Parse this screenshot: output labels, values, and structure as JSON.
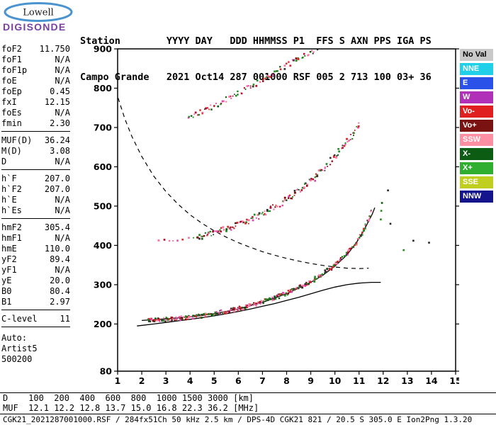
{
  "logo": {
    "line1": "Lowell",
    "line2": "DIGISONDE"
  },
  "header": {
    "line1": "Station        YYYY DAY   DDD HHMMSS P1  FFS S AXN PPS IGA PS",
    "line2": "Campo Grande   2021 Oct14 287 001000 RSF 005 2 713 100 03+ 36"
  },
  "params": {
    "groups": [
      {
        "rows": [
          [
            "foF2",
            "11.750"
          ],
          [
            "foF1",
            "N/A"
          ],
          [
            "foF1p",
            "N/A"
          ],
          [
            "foE",
            "N/A"
          ],
          [
            "foEp",
            "0.45"
          ],
          [
            "fxI",
            "12.15"
          ],
          [
            "foEs",
            "N/A"
          ],
          [
            "fmin",
            "2.30"
          ]
        ]
      },
      {
        "rows": [
          [
            "MUF(D)",
            "36.24"
          ],
          [
            "M(D)",
            "3.08"
          ],
          [
            "D",
            "N/A"
          ]
        ]
      },
      {
        "rows": [
          [
            "h`F",
            "207.0"
          ],
          [
            "h`F2",
            "207.0"
          ],
          [
            "h`E",
            "N/A"
          ],
          [
            "h`Es",
            "N/A"
          ]
        ]
      },
      {
        "rows": [
          [
            "hmF2",
            "305.4"
          ],
          [
            "hmF1",
            "N/A"
          ],
          [
            "hmE",
            "110.0"
          ],
          [
            "yF2",
            "89.4"
          ],
          [
            "yF1",
            "N/A"
          ],
          [
            "yE",
            "20.0"
          ],
          [
            "B0",
            "80.4"
          ],
          [
            "B1",
            "2.97"
          ]
        ]
      },
      {
        "rows": [
          [
            "C-level",
            "11"
          ]
        ]
      }
    ],
    "auto_lines": [
      "Auto:",
      "Artist5",
      "500200"
    ]
  },
  "legend": {
    "items": [
      {
        "label": "No Val",
        "bg": "#c9c9c9",
        "fg": "#000000"
      },
      {
        "label": "NNE",
        "bg": "#1fd0e8",
        "fg": "#ffffff"
      },
      {
        "label": "E",
        "bg": "#2a52e8",
        "fg": "#ffffff"
      },
      {
        "label": "W",
        "bg": "#b030b8",
        "fg": "#ffffff"
      },
      {
        "label": "Vo-",
        "bg": "#e02020",
        "fg": "#ffffff"
      },
      {
        "label": "Vo+",
        "bg": "#7a1212",
        "fg": "#ffffff"
      },
      {
        "label": "SSW",
        "bg": "#ff8fa3",
        "fg": "#ffffff"
      },
      {
        "label": "X-",
        "bg": "#0c5c14",
        "fg": "#ffffff"
      },
      {
        "label": "X+",
        "bg": "#2fae2f",
        "fg": "#ffffff"
      },
      {
        "label": "SSE",
        "bg": "#bfce1f",
        "fg": "#ffffff"
      },
      {
        "label": "NNW",
        "bg": "#14148c",
        "fg": "#ffffff"
      }
    ]
  },
  "chart_data": {
    "type": "scatter",
    "title": "",
    "x_unit": "MHz",
    "y_unit": "km",
    "xlim": [
      1,
      15
    ],
    "ylim": [
      80,
      900
    ],
    "x_ticks": [
      1,
      2,
      3,
      4,
      5,
      6,
      7,
      8,
      9,
      10,
      11,
      12,
      13,
      14,
      15
    ],
    "y_ticks": [
      80,
      200,
      300,
      400,
      500,
      600,
      700,
      800,
      900
    ],
    "grid": false,
    "legend_position": "right",
    "dot_colors": [
      "#d42a2a",
      "#d42a2a",
      "#b01030",
      "#ff6f9f",
      "#ff6f9f",
      "#e040b0",
      "#8b0000",
      "#1f8a1f",
      "#1f8a1f",
      "#0c5a0c",
      "#303030"
    ],
    "series": [
      {
        "name": "F2 trace 1st hop",
        "style": "scatter-trace",
        "step": 0.055,
        "per": 2,
        "jitter_h": 5,
        "points": [
          [
            2.25,
            210
          ],
          [
            2.6,
            210
          ],
          [
            3.0,
            212
          ],
          [
            3.5,
            214
          ],
          [
            4.0,
            217
          ],
          [
            4.5,
            221
          ],
          [
            5.0,
            226
          ],
          [
            5.5,
            232
          ],
          [
            6.0,
            239
          ],
          [
            6.5,
            247
          ],
          [
            7.0,
            256
          ],
          [
            7.5,
            266
          ],
          [
            8.0,
            278
          ],
          [
            8.5,
            292
          ],
          [
            9.0,
            308
          ],
          [
            9.5,
            327
          ],
          [
            10.0,
            350
          ],
          [
            10.4,
            372
          ],
          [
            10.8,
            400
          ],
          [
            11.1,
            428
          ],
          [
            11.3,
            452
          ],
          [
            11.45,
            475
          ],
          [
            11.55,
            497
          ]
        ]
      },
      {
        "name": "F2 trace 2nd hop onset",
        "style": "scatter-trace",
        "step": 0.2,
        "per": 1,
        "jitter_h": 5,
        "points": [
          [
            2.7,
            411
          ],
          [
            3.3,
            414
          ],
          [
            3.9,
            418
          ],
          [
            4.3,
            421
          ]
        ]
      },
      {
        "name": "F2 trace 2nd hop",
        "style": "scatter-trace",
        "step": 0.08,
        "per": 2,
        "jitter_h": 7,
        "points": [
          [
            4.3,
            421
          ],
          [
            4.8,
            429
          ],
          [
            5.3,
            438
          ],
          [
            5.8,
            448
          ],
          [
            6.3,
            460
          ],
          [
            6.8,
            474
          ],
          [
            7.3,
            490
          ],
          [
            7.8,
            508
          ],
          [
            8.3,
            529
          ],
          [
            8.8,
            553
          ],
          [
            9.3,
            580
          ],
          [
            9.7,
            606
          ],
          [
            10.1,
            634
          ],
          [
            10.45,
            660
          ],
          [
            10.75,
            684
          ],
          [
            11.0,
            706
          ],
          [
            11.1,
            714
          ]
        ]
      },
      {
        "name": "F2 trace 3rd hop",
        "style": "scatter-trace",
        "step": 0.12,
        "per": 2,
        "jitter_h": 7,
        "points": [
          [
            3.95,
            726
          ],
          [
            4.5,
            741
          ],
          [
            5.0,
            756
          ],
          [
            5.5,
            771
          ],
          [
            6.0,
            787
          ],
          [
            6.5,
            804
          ],
          [
            7.0,
            821
          ],
          [
            7.5,
            839
          ],
          [
            8.0,
            857
          ],
          [
            8.5,
            875
          ],
          [
            9.0,
            891
          ],
          [
            9.35,
            902
          ]
        ]
      },
      {
        "name": "isolated echoes",
        "style": "points",
        "points": [
          [
            11.9,
            466,
            "#1f8a1f"
          ],
          [
            11.92,
            488,
            "#1f8a1f"
          ],
          [
            11.95,
            508,
            "#0c5a0c"
          ],
          [
            12.3,
            455,
            "#222222"
          ],
          [
            12.2,
            540,
            "#222222"
          ],
          [
            12.85,
            388,
            "#1f8a1f"
          ],
          [
            13.25,
            412,
            "#222222"
          ],
          [
            13.9,
            407,
            "#222222"
          ]
        ]
      },
      {
        "name": "MUF transmission curve",
        "style": "dashed-line",
        "points": [
          [
            1.02,
            775
          ],
          [
            1.3,
            722
          ],
          [
            1.6,
            676
          ],
          [
            2.0,
            626
          ],
          [
            2.5,
            576
          ],
          [
            3.0,
            537
          ],
          [
            3.5,
            505
          ],
          [
            4.0,
            478
          ],
          [
            4.5,
            456
          ],
          [
            5.0,
            437
          ],
          [
            5.5,
            421
          ],
          [
            6.0,
            407
          ],
          [
            6.5,
            395
          ],
          [
            7.0,
            384
          ],
          [
            7.5,
            375
          ],
          [
            8.0,
            367
          ],
          [
            8.5,
            360
          ],
          [
            9.0,
            354
          ],
          [
            9.5,
            349
          ],
          [
            10.0,
            345
          ],
          [
            10.5,
            342
          ],
          [
            11.0,
            341
          ],
          [
            11.4,
            342
          ]
        ]
      },
      {
        "name": "ARTIST fitted h'(f)",
        "style": "solid-line",
        "points": [
          [
            2.0,
            209
          ],
          [
            3.0,
            213
          ],
          [
            4.0,
            218
          ],
          [
            5.0,
            226
          ],
          [
            6.0,
            238
          ],
          [
            7.0,
            255
          ],
          [
            8.0,
            277
          ],
          [
            9.0,
            306
          ],
          [
            9.5,
            324
          ],
          [
            10.0,
            347
          ],
          [
            10.5,
            376
          ],
          [
            10.9,
            408
          ],
          [
            11.2,
            438
          ],
          [
            11.4,
            462
          ],
          [
            11.55,
            480
          ],
          [
            11.65,
            496
          ]
        ]
      },
      {
        "name": "true height profile",
        "style": "solid-line",
        "points": [
          [
            1.8,
            195
          ],
          [
            2.5,
            200
          ],
          [
            3.0,
            204
          ],
          [
            3.5,
            208
          ],
          [
            4.0,
            212
          ],
          [
            4.5,
            216
          ],
          [
            5.0,
            221
          ],
          [
            5.5,
            226
          ],
          [
            6.0,
            232
          ],
          [
            6.5,
            238
          ],
          [
            7.0,
            245
          ],
          [
            7.5,
            252
          ],
          [
            8.0,
            260
          ],
          [
            8.5,
            268
          ],
          [
            9.0,
            277
          ],
          [
            9.5,
            286
          ],
          [
            10.0,
            294
          ],
          [
            10.5,
            300
          ],
          [
            11.0,
            304
          ],
          [
            11.5,
            306
          ],
          [
            11.9,
            306
          ]
        ]
      }
    ]
  },
  "bottom": {
    "d_row": "D    100  200  400  600  800  1000 1500 3000 [km]",
    "muf_row": "MUF  12.1 12.2 12.8 13.7 15.0 16.8 22.3 36.2 [MHz]",
    "footer": "CGK21_2021287001000.RSF / 284fx51Ch 50 kHz 2.5 km / DPS-4D CGK21 821 / 20.5 S 305.0 E Ion2Png 1.3.20"
  }
}
